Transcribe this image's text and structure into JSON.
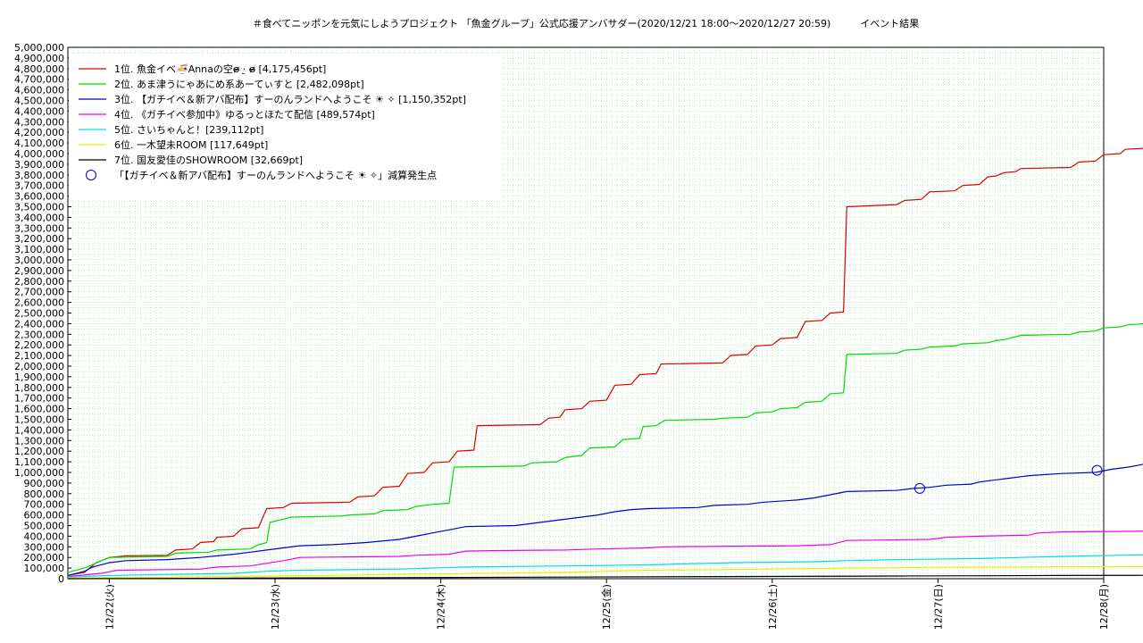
{
  "chart_data": {
    "type": "line",
    "title": "＃食べてニッポンを元気にしようプロジェクト 「魚金グループ」公式応援アンバサダー(2020/12/21 18:00〜2020/12/27 20:59)　　　イベント結果",
    "xlabel": "",
    "ylabel": "",
    "ylim": [
      0,
      5000000
    ],
    "xlim": [
      0,
      6.2
    ],
    "grid": true,
    "legend_position": "top-left",
    "x_ticks": [
      {
        "x": 0.25,
        "label": "12/22(火)"
      },
      {
        "x": 1.25,
        "label": "12/23(水)"
      },
      {
        "x": 2.25,
        "label": "12/24(木)"
      },
      {
        "x": 3.25,
        "label": "12/25(金)"
      },
      {
        "x": 4.25,
        "label": "12/26(土)"
      },
      {
        "x": 5.25,
        "label": "12/27(日)"
      },
      {
        "x": 6.25,
        "label": "12/28(月)"
      }
    ],
    "y_ticks": [
      "0",
      "100,000",
      "200,000",
      "300,000",
      "400,000",
      "500,000",
      "600,000",
      "700,000",
      "800,000",
      "900,000",
      "1,000,000",
      "1,100,000",
      "1,200,000",
      "1,300,000",
      "1,400,000",
      "1,500,000",
      "1,600,000",
      "1,700,000",
      "1,800,000",
      "1,900,000",
      "2,000,000",
      "2,100,000",
      "2,200,000",
      "2,300,000",
      "2,400,000",
      "2,500,000",
      "2,600,000",
      "2,700,000",
      "2,800,000",
      "2,900,000",
      "3,000,000",
      "3,100,000",
      "3,200,000",
      "3,300,000",
      "3,400,000",
      "3,500,000",
      "3,600,000",
      "3,700,000",
      "3,800,000",
      "3,900,000",
      "4,000,000",
      "4,100,000",
      "4,200,000",
      "4,300,000",
      "4,400,000",
      "4,500,000",
      "4,600,000",
      "4,700,000",
      "4,800,000",
      "4,900,000",
      "5,000,000"
    ],
    "series": [
      {
        "name": "1位. 魚金イベ🍜Annaの空ɞ̴̶̷ ·̮ ɞ̴̶̷ [4,175,456pt]",
        "color": "#dd0000",
        "points": [
          [
            0,
            30000
          ],
          [
            0.1,
            60000
          ],
          [
            0.17,
            150000
          ],
          [
            0.25,
            200000
          ],
          [
            0.35,
            215000
          ],
          [
            0.6,
            220000
          ],
          [
            0.65,
            270000
          ],
          [
            0.75,
            280000
          ],
          [
            0.8,
            340000
          ],
          [
            0.88,
            350000
          ],
          [
            0.9,
            390000
          ],
          [
            1.0,
            400000
          ],
          [
            1.05,
            470000
          ],
          [
            1.15,
            480000
          ],
          [
            1.2,
            660000
          ],
          [
            1.3,
            670000
          ],
          [
            1.35,
            710000
          ],
          [
            1.7,
            720000
          ],
          [
            1.75,
            770000
          ],
          [
            1.85,
            780000
          ],
          [
            1.9,
            860000
          ],
          [
            2.0,
            870000
          ],
          [
            2.05,
            990000
          ],
          [
            2.15,
            1000000
          ],
          [
            2.2,
            1090000
          ],
          [
            2.3,
            1100000
          ],
          [
            2.35,
            1200000
          ],
          [
            2.45,
            1210000
          ],
          [
            2.47,
            1440000
          ],
          [
            2.85,
            1450000
          ],
          [
            2.9,
            1510000
          ],
          [
            2.97,
            1520000
          ],
          [
            3.0,
            1590000
          ],
          [
            3.1,
            1600000
          ],
          [
            3.15,
            1670000
          ],
          [
            3.25,
            1680000
          ],
          [
            3.3,
            1820000
          ],
          [
            3.4,
            1830000
          ],
          [
            3.45,
            1920000
          ],
          [
            3.55,
            1930000
          ],
          [
            3.58,
            2020000
          ],
          [
            3.95,
            2030000
          ],
          [
            4.0,
            2100000
          ],
          [
            4.1,
            2110000
          ],
          [
            4.15,
            2190000
          ],
          [
            4.25,
            2200000
          ],
          [
            4.3,
            2260000
          ],
          [
            4.4,
            2270000
          ],
          [
            4.45,
            2420000
          ],
          [
            4.55,
            2430000
          ],
          [
            4.6,
            2500000
          ],
          [
            4.68,
            2510000
          ],
          [
            4.7,
            3500000
          ],
          [
            5.0,
            3520000
          ],
          [
            5.05,
            3560000
          ],
          [
            5.15,
            3570000
          ],
          [
            5.2,
            3640000
          ],
          [
            5.35,
            3650000
          ],
          [
            5.4,
            3700000
          ],
          [
            5.5,
            3710000
          ],
          [
            5.55,
            3780000
          ],
          [
            5.6,
            3790000
          ],
          [
            5.65,
            3820000
          ],
          [
            5.72,
            3830000
          ],
          [
            5.75,
            3860000
          ],
          [
            6.05,
            3870000
          ],
          [
            6.1,
            3920000
          ],
          [
            6.2,
            3930000
          ],
          [
            6.25,
            3990000
          ],
          [
            6.35,
            4000000
          ],
          [
            6.38,
            4040000
          ],
          [
            6.5,
            4050000
          ],
          [
            6.53,
            4140000
          ],
          [
            6.57,
            4175456
          ]
        ]
      },
      {
        "name": "2位. あま津うにゃあにめ系あーてぃすと [2,482,098pt]",
        "color": "#00dd00",
        "points": [
          [
            0,
            60000
          ],
          [
            0.1,
            100000
          ],
          [
            0.25,
            200000
          ],
          [
            0.6,
            210000
          ],
          [
            0.65,
            240000
          ],
          [
            0.85,
            250000
          ],
          [
            0.9,
            270000
          ],
          [
            1.1,
            280000
          ],
          [
            1.15,
            320000
          ],
          [
            1.2,
            340000
          ],
          [
            1.22,
            530000
          ],
          [
            1.3,
            560000
          ],
          [
            1.35,
            580000
          ],
          [
            1.65,
            590000
          ],
          [
            1.7,
            600000
          ],
          [
            1.85,
            610000
          ],
          [
            1.9,
            640000
          ],
          [
            2.05,
            650000
          ],
          [
            2.1,
            680000
          ],
          [
            2.2,
            700000
          ],
          [
            2.3,
            710000
          ],
          [
            2.33,
            1050000
          ],
          [
            2.75,
            1060000
          ],
          [
            2.8,
            1090000
          ],
          [
            2.95,
            1100000
          ],
          [
            3.0,
            1140000
          ],
          [
            3.1,
            1160000
          ],
          [
            3.15,
            1230000
          ],
          [
            3.3,
            1240000
          ],
          [
            3.35,
            1310000
          ],
          [
            3.45,
            1320000
          ],
          [
            3.47,
            1430000
          ],
          [
            3.55,
            1440000
          ],
          [
            3.6,
            1490000
          ],
          [
            3.9,
            1500000
          ],
          [
            3.95,
            1510000
          ],
          [
            4.1,
            1520000
          ],
          [
            4.15,
            1560000
          ],
          [
            4.25,
            1570000
          ],
          [
            4.3,
            1600000
          ],
          [
            4.4,
            1610000
          ],
          [
            4.45,
            1660000
          ],
          [
            4.55,
            1670000
          ],
          [
            4.6,
            1740000
          ],
          [
            4.68,
            1750000
          ],
          [
            4.7,
            2110000
          ],
          [
            5.0,
            2120000
          ],
          [
            5.05,
            2150000
          ],
          [
            5.15,
            2160000
          ],
          [
            5.2,
            2180000
          ],
          [
            5.35,
            2190000
          ],
          [
            5.4,
            2210000
          ],
          [
            5.55,
            2220000
          ],
          [
            5.6,
            2240000
          ],
          [
            5.65,
            2250000
          ],
          [
            5.7,
            2270000
          ],
          [
            5.75,
            2290000
          ],
          [
            6.05,
            2300000
          ],
          [
            6.1,
            2320000
          ],
          [
            6.2,
            2330000
          ],
          [
            6.25,
            2360000
          ],
          [
            6.35,
            2370000
          ],
          [
            6.4,
            2390000
          ],
          [
            6.5,
            2400000
          ],
          [
            6.55,
            2430000
          ],
          [
            6.6,
            2460000
          ],
          [
            6.65,
            2470000
          ],
          [
            6.7,
            2482098
          ]
        ]
      },
      {
        "name": "3位. 【ガチイベ＆新アバ配布】すーのんランドへようこそ ☀ ✧ [1,150,352pt]",
        "color": "#0000cc",
        "points": [
          [
            0,
            30000
          ],
          [
            0.1,
            70000
          ],
          [
            0.15,
            110000
          ],
          [
            0.25,
            150000
          ],
          [
            0.35,
            170000
          ],
          [
            0.6,
            180000
          ],
          [
            0.8,
            200000
          ],
          [
            1.0,
            230000
          ],
          [
            1.1,
            250000
          ],
          [
            1.2,
            270000
          ],
          [
            1.3,
            290000
          ],
          [
            1.4,
            310000
          ],
          [
            1.6,
            320000
          ],
          [
            1.8,
            340000
          ],
          [
            2.0,
            370000
          ],
          [
            2.1,
            400000
          ],
          [
            2.2,
            430000
          ],
          [
            2.3,
            460000
          ],
          [
            2.4,
            490000
          ],
          [
            2.7,
            500000
          ],
          [
            2.8,
            520000
          ],
          [
            3.0,
            560000
          ],
          [
            3.1,
            580000
          ],
          [
            3.2,
            600000
          ],
          [
            3.3,
            630000
          ],
          [
            3.4,
            650000
          ],
          [
            3.5,
            660000
          ],
          [
            3.8,
            670000
          ],
          [
            3.9,
            690000
          ],
          [
            4.1,
            700000
          ],
          [
            4.2,
            720000
          ],
          [
            4.4,
            740000
          ],
          [
            4.5,
            760000
          ],
          [
            4.6,
            790000
          ],
          [
            4.7,
            820000
          ],
          [
            5.0,
            830000
          ],
          [
            5.1,
            850000
          ],
          [
            5.2,
            860000
          ],
          [
            5.3,
            880000
          ],
          [
            5.45,
            890000
          ],
          [
            5.5,
            910000
          ],
          [
            5.6,
            930000
          ],
          [
            5.7,
            950000
          ],
          [
            5.8,
            970000
          ],
          [
            5.9,
            980000
          ],
          [
            6.0,
            990000
          ],
          [
            6.2,
            1000000
          ],
          [
            6.3,
            1030000
          ],
          [
            6.4,
            1050000
          ],
          [
            6.5,
            1080000
          ],
          [
            6.6,
            1100000
          ],
          [
            6.65,
            1130000
          ],
          [
            6.72,
            1150352
          ]
        ]
      },
      {
        "name": "4位. 《ガチイベ参加中》ゆるっとほたて配信 [489,574pt]",
        "color": "#ee00ee",
        "points": [
          [
            0,
            20000
          ],
          [
            0.2,
            50000
          ],
          [
            0.3,
            80000
          ],
          [
            0.8,
            90000
          ],
          [
            0.9,
            110000
          ],
          [
            1.1,
            120000
          ],
          [
            1.3,
            170000
          ],
          [
            1.4,
            200000
          ],
          [
            2.0,
            210000
          ],
          [
            2.1,
            220000
          ],
          [
            2.3,
            230000
          ],
          [
            2.4,
            260000
          ],
          [
            2.6,
            265000
          ],
          [
            3.0,
            270000
          ],
          [
            3.2,
            280000
          ],
          [
            3.5,
            290000
          ],
          [
            3.6,
            300000
          ],
          [
            4.4,
            310000
          ],
          [
            4.6,
            320000
          ],
          [
            4.7,
            360000
          ],
          [
            5.2,
            370000
          ],
          [
            5.3,
            390000
          ],
          [
            5.5,
            400000
          ],
          [
            5.8,
            410000
          ],
          [
            5.85,
            430000
          ],
          [
            6.0,
            440000
          ],
          [
            6.65,
            450000
          ],
          [
            6.7,
            480000
          ],
          [
            6.72,
            489574
          ]
        ]
      },
      {
        "name": "5位. さいちゃんと！[239,112pt]",
        "color": "#00dddd",
        "points": [
          [
            0,
            15000
          ],
          [
            0.25,
            30000
          ],
          [
            0.8,
            45000
          ],
          [
            1.0,
            50000
          ],
          [
            1.2,
            70000
          ],
          [
            1.4,
            80000
          ],
          [
            2.0,
            90000
          ],
          [
            2.4,
            110000
          ],
          [
            3.0,
            120000
          ],
          [
            3.5,
            130000
          ],
          [
            4.0,
            150000
          ],
          [
            4.5,
            160000
          ],
          [
            4.7,
            170000
          ],
          [
            5.0,
            180000
          ],
          [
            5.5,
            190000
          ],
          [
            6.0,
            210000
          ],
          [
            6.5,
            225000
          ],
          [
            6.72,
            239112
          ]
        ]
      },
      {
        "name": "6位. 一木望未ROOM [117,649pt]",
        "color": "#eeee00",
        "points": [
          [
            0,
            5000
          ],
          [
            0.3,
            10000
          ],
          [
            1.0,
            20000
          ],
          [
            2.0,
            40000
          ],
          [
            3.0,
            60000
          ],
          [
            3.5,
            80000
          ],
          [
            4.2,
            90000
          ],
          [
            4.7,
            100000
          ],
          [
            5.5,
            110000
          ],
          [
            6.0,
            112000
          ],
          [
            6.72,
            117649
          ]
        ]
      },
      {
        "name": "7位. 国友愛佳のSHOWROOM [32,669pt]",
        "color": "#000000",
        "points": [
          [
            0,
            0
          ],
          [
            0.3,
            2000
          ],
          [
            1.0,
            5000
          ],
          [
            2.0,
            10000
          ],
          [
            3.0,
            15000
          ],
          [
            4.0,
            20000
          ],
          [
            5.0,
            25000
          ],
          [
            6.0,
            30000
          ],
          [
            6.72,
            32669
          ]
        ]
      }
    ],
    "markers": {
      "name": "「【ガチイベ＆新アバ配布】すーのんランドへようこそ ☀ ✧」減算発生点",
      "color": "#0000cc",
      "points": [
        [
          5.14,
          850000
        ],
        [
          6.21,
          1020000
        ]
      ]
    }
  }
}
